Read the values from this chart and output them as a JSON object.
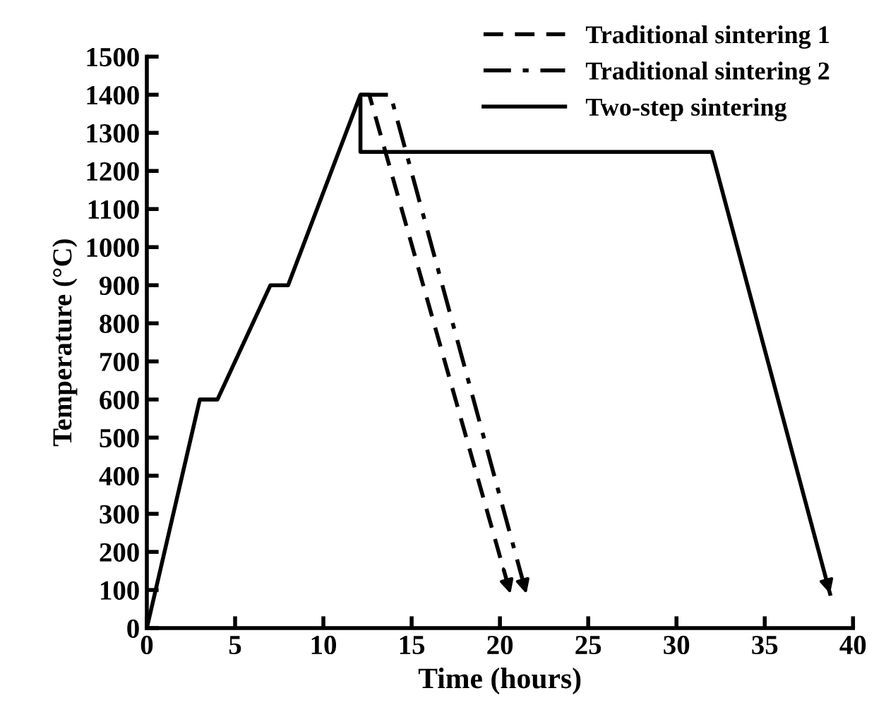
{
  "chart_data": {
    "type": "line",
    "xlabel": "Time (hours)",
    "ylabel": "Temperature (°C)",
    "xlim": [
      0,
      40
    ],
    "xticks": [
      0,
      5,
      10,
      15,
      20,
      25,
      30,
      35,
      40
    ],
    "ylim": [
      0,
      1500
    ],
    "yticks": [
      0,
      100,
      200,
      300,
      400,
      500,
      600,
      700,
      800,
      900,
      1000,
      1100,
      1200,
      1300,
      1400,
      1500
    ],
    "grid": false,
    "legend": "top right",
    "marker": "none",
    "series": [
      {
        "name": "Traditional sintering 1",
        "color": "#000000",
        "line_style": "dashed",
        "x": [
          12.1,
          12.6,
          20.6
        ],
        "values": [
          1400,
          1400,
          90
        ]
      },
      {
        "name": "Traditional sintering 2",
        "color": "#000000",
        "line_style": "dashdot",
        "x": [
          12.1,
          13.8,
          21.5
        ],
        "values": [
          1400,
          1400,
          90
        ]
      },
      {
        "name": "Two-step sintering",
        "color": "#000000",
        "line_style": "solid",
        "x": [
          0,
          3,
          4,
          7,
          8,
          12.1,
          12.1,
          32,
          38.7
        ],
        "values": [
          0,
          600,
          600,
          900,
          900,
          1400,
          1250,
          1250,
          90
        ]
      }
    ]
  }
}
